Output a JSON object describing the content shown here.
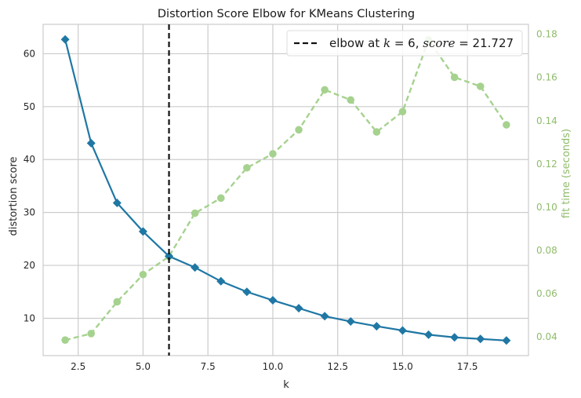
{
  "chart_data": {
    "type": "line",
    "title": "Distortion Score Elbow for KMeans Clustering",
    "xlabel": "k",
    "ylabel": "distortion score",
    "y2label": "fit time (seconds)",
    "x": [
      2,
      3,
      4,
      5,
      6,
      7,
      8,
      9,
      10,
      11,
      12,
      13,
      14,
      15,
      16,
      17,
      18,
      19
    ],
    "series": [
      {
        "name": "distortion score",
        "axis": "left",
        "style": "solid",
        "marker": "diamond",
        "color": "#1f77a4",
        "values": [
          62.7,
          43.1,
          31.8,
          26.4,
          21.727,
          19.6,
          17.0,
          15.0,
          13.4,
          11.9,
          10.4,
          9.4,
          8.5,
          7.7,
          6.9,
          6.4,
          6.1,
          5.8
        ]
      },
      {
        "name": "fit time (seconds)",
        "axis": "right",
        "style": "dashed",
        "marker": "circle",
        "color": "#a6d28f",
        "values": [
          0.0385,
          0.0415,
          0.0562,
          0.0688,
          0.0772,
          0.0972,
          0.1042,
          0.1182,
          0.1247,
          0.1358,
          0.1543,
          0.1496,
          0.1348,
          0.1442,
          0.1774,
          0.1601,
          0.1559,
          0.1381
        ]
      }
    ],
    "elbow": {
      "k": 6,
      "score": 21.727
    },
    "legend": {
      "position": "top-right",
      "prefix": "elbow at ",
      "k_var": "k",
      "eq": " = 6, ",
      "score_var": "score",
      "score_eq": " = 21.727"
    },
    "xlim": [
      1.15,
      19.85
    ],
    "ylim": [
      2.95,
      65.55
    ],
    "y2lim": [
      0.0313,
      0.1846
    ],
    "xticks": [
      2.5,
      5.0,
      7.5,
      10.0,
      12.5,
      15.0,
      17.5
    ],
    "xtick_labels": [
      "2.5",
      "5.0",
      "7.5",
      "10.0",
      "12.5",
      "15.0",
      "17.5"
    ],
    "yticks": [
      10,
      20,
      30,
      40,
      50,
      60
    ],
    "ytick_labels": [
      "10",
      "20",
      "30",
      "40",
      "50",
      "60"
    ],
    "y2ticks": [
      0.04,
      0.06,
      0.08,
      0.1,
      0.12,
      0.14,
      0.16,
      0.18
    ],
    "y2tick_labels": [
      "0.04",
      "0.06",
      "0.08",
      "0.10",
      "0.12",
      "0.14",
      "0.16",
      "0.18"
    ],
    "grid": true
  }
}
